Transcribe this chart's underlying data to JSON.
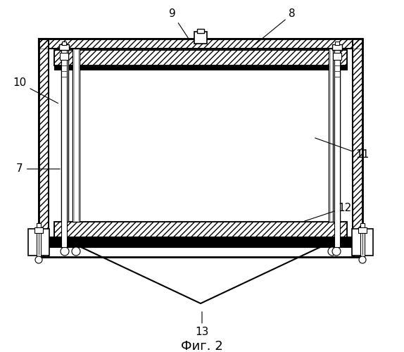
{
  "title": "Фиг. 2",
  "bg_color": "#ffffff",
  "lc": "#000000",
  "figsize": [
    5.74,
    5.0
  ],
  "dpi": 100,
  "label_fontsize": 11,
  "caption_fontsize": 13
}
